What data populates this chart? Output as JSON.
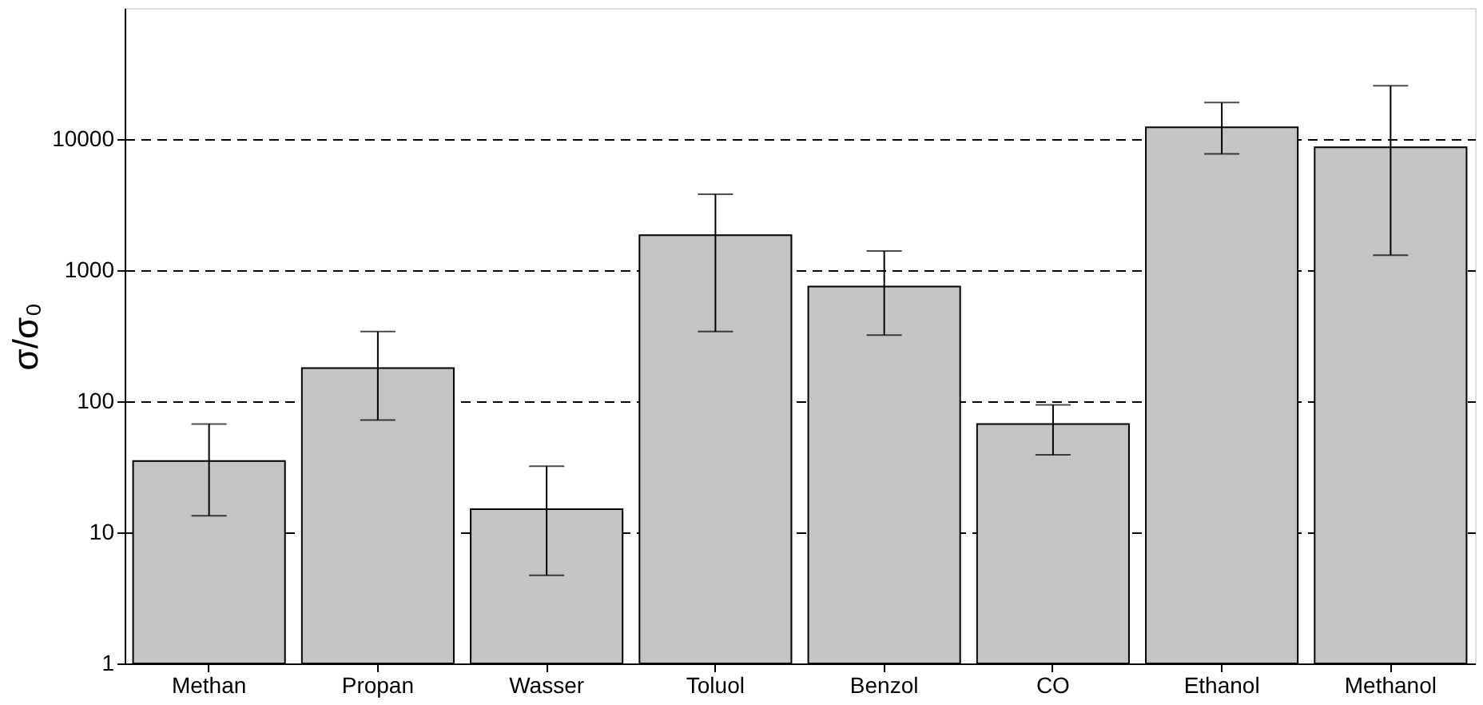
{
  "chart_data": {
    "type": "bar",
    "ylabel": "σ/σ₀",
    "categories": [
      "Methan",
      "Propan",
      "Wasser",
      "Toluol",
      "Benzol",
      "CO",
      "Ethanol",
      "Methanol"
    ],
    "values": [
      35,
      179,
      15,
      1850,
      750,
      67,
      12300,
      8650
    ],
    "errors": [
      [
        13.4,
        67
      ],
      [
        72,
        340
      ],
      [
        4.7,
        32
      ],
      [
        340,
        3800
      ],
      [
        320,
        1400
      ],
      [
        39,
        94
      ],
      [
        7700,
        19000
      ],
      [
        1300,
        25500
      ]
    ],
    "color": "#c4c4c4",
    "log": true,
    "ylim": [
      1,
      100000
    ],
    "yticks": [
      1,
      10,
      100,
      1000,
      10000
    ],
    "grid": "y"
  }
}
